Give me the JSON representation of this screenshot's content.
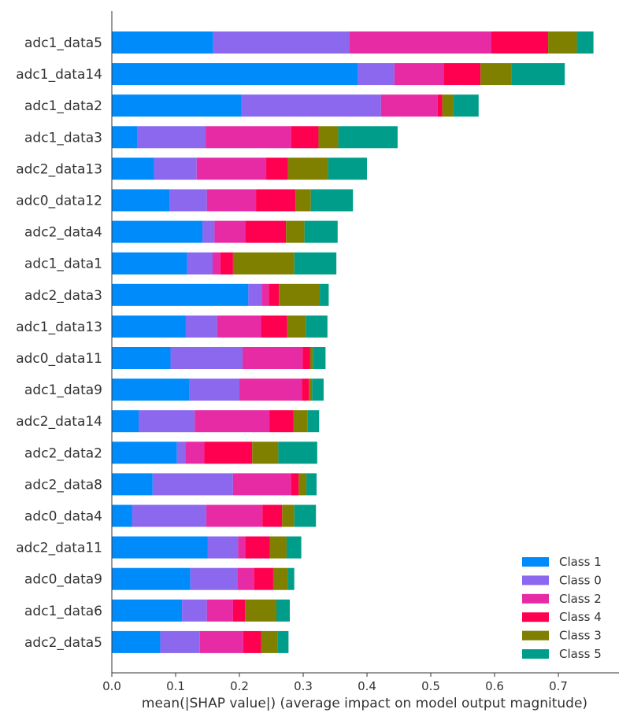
{
  "chart_data": {
    "type": "bar",
    "orientation": "horizontal",
    "stacked": true,
    "xlabel": "mean(|SHAP value|) (average impact on model output magnitude)",
    "ylabel": "",
    "xlim": [
      0.0,
      0.795
    ],
    "xticks": [
      "0.0",
      "0.1",
      "0.2",
      "0.3",
      "0.4",
      "0.5",
      "0.6",
      "0.7"
    ],
    "legend_position": "bottom-right",
    "categories": [
      "adc1_data5",
      "adc1_data14",
      "adc1_data2",
      "adc1_data3",
      "adc2_data13",
      "adc0_data12",
      "adc2_data4",
      "adc1_data1",
      "adc2_data3",
      "adc1_data13",
      "adc0_data11",
      "adc1_data9",
      "adc2_data14",
      "adc2_data2",
      "adc2_data8",
      "adc0_data4",
      "adc2_data11",
      "adc0_data9",
      "adc1_data6",
      "adc2_data5"
    ],
    "series": [
      {
        "name": "Class 1",
        "color": "#008bfb",
        "values": [
          0.159,
          0.386,
          0.203,
          0.04,
          0.066,
          0.091,
          0.142,
          0.118,
          0.214,
          0.116,
          0.092,
          0.122,
          0.042,
          0.102,
          0.064,
          0.032,
          0.15,
          0.123,
          0.11,
          0.076
        ]
      },
      {
        "name": "Class 0",
        "color": "#8b68ee",
        "values": [
          0.213,
          0.057,
          0.219,
          0.107,
          0.067,
          0.058,
          0.019,
          0.04,
          0.021,
          0.049,
          0.113,
          0.078,
          0.088,
          0.013,
          0.126,
          0.116,
          0.048,
          0.074,
          0.039,
          0.062
        ]
      },
      {
        "name": "Class 2",
        "color": "#e62ba5",
        "values": [
          0.223,
          0.077,
          0.089,
          0.134,
          0.109,
          0.077,
          0.048,
          0.012,
          0.011,
          0.069,
          0.094,
          0.098,
          0.117,
          0.03,
          0.091,
          0.088,
          0.011,
          0.026,
          0.041,
          0.068
        ]
      },
      {
        "name": "Class 4",
        "color": "#ff0051",
        "values": [
          0.089,
          0.058,
          0.007,
          0.043,
          0.034,
          0.062,
          0.064,
          0.02,
          0.016,
          0.041,
          0.012,
          0.011,
          0.038,
          0.075,
          0.012,
          0.031,
          0.039,
          0.03,
          0.019,
          0.028
        ]
      },
      {
        "name": "Class 3",
        "color": "#7f8000",
        "values": [
          0.045,
          0.049,
          0.017,
          0.031,
          0.063,
          0.024,
          0.029,
          0.096,
          0.064,
          0.029,
          0.004,
          0.005,
          0.022,
          0.041,
          0.012,
          0.019,
          0.026,
          0.023,
          0.049,
          0.026
        ]
      },
      {
        "name": "Class 5",
        "color": "#009e8a",
        "values": [
          0.026,
          0.083,
          0.04,
          0.093,
          0.061,
          0.066,
          0.052,
          0.066,
          0.014,
          0.034,
          0.02,
          0.018,
          0.018,
          0.061,
          0.016,
          0.034,
          0.023,
          0.01,
          0.021,
          0.017
        ]
      }
    ],
    "legend_order": [
      "Class 1",
      "Class 0",
      "Class 2",
      "Class 4",
      "Class 3",
      "Class 5"
    ]
  }
}
